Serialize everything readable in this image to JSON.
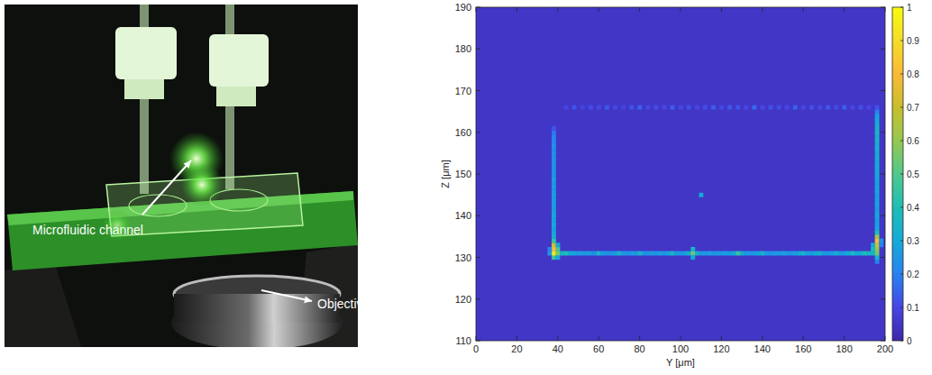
{
  "photo": {
    "labels": [
      "Microfluidic channel",
      "Objective"
    ]
  },
  "chart_data": {
    "type": "heatmap",
    "xlabel": "Y [μm]",
    "ylabel": "Z [μm]",
    "xlim": [
      0,
      200
    ],
    "xticks": [
      0,
      20,
      40,
      60,
      80,
      100,
      120,
      140,
      160,
      180,
      200
    ],
    "ylim": [
      110,
      190
    ],
    "yticks": [
      110,
      120,
      130,
      140,
      150,
      160,
      170,
      180,
      190
    ],
    "background": 0.05,
    "colorbar": {
      "lim": [
        0,
        1
      ],
      "ticks": [
        0,
        0.1,
        0.2,
        0.3,
        0.4,
        0.5,
        0.6,
        0.7,
        0.8,
        0.9,
        1
      ]
    },
    "cells": [
      [
        38,
        130,
        0.45
      ],
      [
        38,
        131,
        0.95
      ],
      [
        38,
        132,
        0.82
      ],
      [
        38,
        133,
        0.72
      ],
      [
        38,
        134,
        0.45
      ],
      [
        38,
        135,
        0.32
      ],
      [
        38,
        136,
        0.3
      ],
      [
        38,
        137,
        0.28
      ],
      [
        38,
        138,
        0.3
      ],
      [
        38,
        139,
        0.28
      ],
      [
        38,
        140,
        0.3
      ],
      [
        38,
        141,
        0.27
      ],
      [
        38,
        142,
        0.28
      ],
      [
        38,
        143,
        0.26
      ],
      [
        38,
        144,
        0.28
      ],
      [
        38,
        145,
        0.27
      ],
      [
        38,
        146,
        0.25
      ],
      [
        38,
        147,
        0.26
      ],
      [
        38,
        148,
        0.25
      ],
      [
        38,
        149,
        0.27
      ],
      [
        38,
        150,
        0.25
      ],
      [
        38,
        151,
        0.24
      ],
      [
        38,
        152,
        0.25
      ],
      [
        38,
        153,
        0.24
      ],
      [
        38,
        154,
        0.23
      ],
      [
        38,
        155,
        0.24
      ],
      [
        38,
        156,
        0.22
      ],
      [
        38,
        157,
        0.23
      ],
      [
        38,
        158,
        0.22
      ],
      [
        38,
        159,
        0.2
      ],
      [
        38,
        160,
        0.18
      ],
      [
        38,
        161,
        0.12
      ],
      [
        36,
        131,
        0.25
      ],
      [
        36,
        132,
        0.2
      ],
      [
        40,
        130,
        0.3
      ],
      [
        40,
        131,
        0.55
      ],
      [
        40,
        132,
        0.5
      ],
      [
        40,
        133,
        0.3
      ],
      [
        196,
        129,
        0.2
      ],
      [
        196,
        130,
        0.35
      ],
      [
        196,
        131,
        0.55
      ],
      [
        196,
        132,
        0.6
      ],
      [
        196,
        133,
        0.72
      ],
      [
        196,
        134,
        0.8
      ],
      [
        196,
        135,
        0.6
      ],
      [
        196,
        136,
        0.4
      ],
      [
        196,
        137,
        0.3
      ],
      [
        196,
        138,
        0.28
      ],
      [
        196,
        139,
        0.27
      ],
      [
        196,
        140,
        0.3
      ],
      [
        196,
        141,
        0.28
      ],
      [
        196,
        142,
        0.27
      ],
      [
        196,
        143,
        0.29
      ],
      [
        196,
        144,
        0.28
      ],
      [
        196,
        145,
        0.27
      ],
      [
        196,
        146,
        0.3
      ],
      [
        196,
        147,
        0.29
      ],
      [
        196,
        148,
        0.28
      ],
      [
        196,
        149,
        0.3
      ],
      [
        196,
        150,
        0.31
      ],
      [
        196,
        151,
        0.3
      ],
      [
        196,
        152,
        0.32
      ],
      [
        196,
        153,
        0.3
      ],
      [
        196,
        154,
        0.33
      ],
      [
        196,
        155,
        0.31
      ],
      [
        196,
        156,
        0.34
      ],
      [
        196,
        157,
        0.32
      ],
      [
        196,
        158,
        0.35
      ],
      [
        196,
        159,
        0.33
      ],
      [
        196,
        160,
        0.36
      ],
      [
        196,
        161,
        0.34
      ],
      [
        196,
        162,
        0.32
      ],
      [
        196,
        163,
        0.3
      ],
      [
        196,
        164,
        0.28
      ],
      [
        196,
        165,
        0.2
      ],
      [
        196,
        166,
        0.12
      ],
      [
        194,
        131,
        0.35
      ],
      [
        194,
        132,
        0.4
      ],
      [
        194,
        133,
        0.3
      ],
      [
        198,
        133,
        0.2
      ],
      [
        198,
        134,
        0.25
      ],
      [
        42,
        131,
        0.35
      ],
      [
        44,
        131,
        0.4
      ],
      [
        46,
        131,
        0.3
      ],
      [
        48,
        131,
        0.28
      ],
      [
        50,
        131,
        0.27
      ],
      [
        52,
        131,
        0.25
      ],
      [
        54,
        131,
        0.26
      ],
      [
        56,
        131,
        0.25
      ],
      [
        58,
        131,
        0.24
      ],
      [
        60,
        131,
        0.35
      ],
      [
        62,
        131,
        0.26
      ],
      [
        64,
        131,
        0.24
      ],
      [
        66,
        131,
        0.25
      ],
      [
        68,
        131,
        0.27
      ],
      [
        70,
        131,
        0.33
      ],
      [
        72,
        131,
        0.25
      ],
      [
        74,
        131,
        0.24
      ],
      [
        76,
        131,
        0.26
      ],
      [
        78,
        131,
        0.25
      ],
      [
        80,
        131,
        0.34
      ],
      [
        82,
        131,
        0.25
      ],
      [
        84,
        131,
        0.24
      ],
      [
        86,
        131,
        0.26
      ],
      [
        88,
        131,
        0.25
      ],
      [
        90,
        131,
        0.27
      ],
      [
        92,
        131,
        0.25
      ],
      [
        94,
        131,
        0.28
      ],
      [
        96,
        131,
        0.36
      ],
      [
        98,
        131,
        0.26
      ],
      [
        100,
        131,
        0.25
      ],
      [
        102,
        131,
        0.27
      ],
      [
        104,
        131,
        0.32
      ],
      [
        106,
        131,
        0.55
      ],
      [
        108,
        131,
        0.33
      ],
      [
        110,
        131,
        0.26
      ],
      [
        112,
        131,
        0.25
      ],
      [
        114,
        131,
        0.27
      ],
      [
        116,
        131,
        0.24
      ],
      [
        118,
        131,
        0.26
      ],
      [
        120,
        131,
        0.25
      ],
      [
        122,
        131,
        0.27
      ],
      [
        124,
        131,
        0.26
      ],
      [
        126,
        131,
        0.3
      ],
      [
        128,
        131,
        0.45
      ],
      [
        130,
        131,
        0.32
      ],
      [
        132,
        131,
        0.26
      ],
      [
        134,
        131,
        0.25
      ],
      [
        136,
        131,
        0.26
      ],
      [
        138,
        131,
        0.28
      ],
      [
        140,
        131,
        0.33
      ],
      [
        142,
        131,
        0.25
      ],
      [
        144,
        131,
        0.24
      ],
      [
        146,
        131,
        0.26
      ],
      [
        148,
        131,
        0.25
      ],
      [
        150,
        131,
        0.27
      ],
      [
        152,
        131,
        0.26
      ],
      [
        154,
        131,
        0.25
      ],
      [
        156,
        131,
        0.27
      ],
      [
        158,
        131,
        0.3
      ],
      [
        160,
        131,
        0.35
      ],
      [
        162,
        131,
        0.27
      ],
      [
        164,
        131,
        0.26
      ],
      [
        166,
        131,
        0.3
      ],
      [
        168,
        131,
        0.33
      ],
      [
        170,
        131,
        0.26
      ],
      [
        172,
        131,
        0.25
      ],
      [
        174,
        131,
        0.27
      ],
      [
        176,
        131,
        0.32
      ],
      [
        178,
        131,
        0.26
      ],
      [
        180,
        131,
        0.27
      ],
      [
        182,
        131,
        0.3
      ],
      [
        184,
        131,
        0.38
      ],
      [
        186,
        131,
        0.3
      ],
      [
        188,
        131,
        0.32
      ],
      [
        190,
        131,
        0.4
      ],
      [
        192,
        131,
        0.35
      ],
      [
        106,
        130,
        0.3
      ],
      [
        106,
        132,
        0.35
      ],
      [
        110,
        145,
        0.3
      ],
      [
        44,
        166,
        0.1
      ],
      [
        48,
        166,
        0.12
      ],
      [
        52,
        166,
        0.09
      ],
      [
        56,
        166,
        0.11
      ],
      [
        60,
        166,
        0.1
      ],
      [
        64,
        166,
        0.13
      ],
      [
        68,
        166,
        0.1
      ],
      [
        72,
        166,
        0.09
      ],
      [
        76,
        166,
        0.12
      ],
      [
        80,
        166,
        0.15
      ],
      [
        84,
        166,
        0.1
      ],
      [
        88,
        166,
        0.11
      ],
      [
        92,
        166,
        0.1
      ],
      [
        96,
        166,
        0.14
      ],
      [
        100,
        166,
        0.1
      ],
      [
        104,
        166,
        0.12
      ],
      [
        108,
        166,
        0.1
      ],
      [
        112,
        166,
        0.11
      ],
      [
        116,
        166,
        0.14
      ],
      [
        120,
        166,
        0.1
      ],
      [
        124,
        166,
        0.13
      ],
      [
        128,
        166,
        0.12
      ],
      [
        132,
        166,
        0.1
      ],
      [
        136,
        166,
        0.16
      ],
      [
        140,
        166,
        0.1
      ],
      [
        144,
        166,
        0.12
      ],
      [
        148,
        166,
        0.11
      ],
      [
        152,
        166,
        0.1
      ],
      [
        156,
        166,
        0.15
      ],
      [
        160,
        166,
        0.1
      ],
      [
        164,
        166,
        0.12
      ],
      [
        168,
        166,
        0.1
      ],
      [
        172,
        166,
        0.13
      ],
      [
        176,
        166,
        0.11
      ],
      [
        180,
        166,
        0.14
      ],
      [
        184,
        166,
        0.1
      ],
      [
        188,
        166,
        0.12
      ],
      [
        192,
        166,
        0.1
      ]
    ]
  }
}
